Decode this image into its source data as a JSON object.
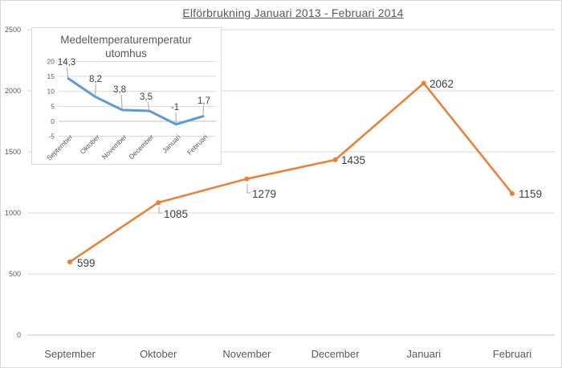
{
  "window": {
    "title": "Elförbrukning Januari 2013 - Februari 2014"
  },
  "colors": {
    "consumption_line": "#ED7D31",
    "temperature_line": "#5B9BD5",
    "gridline": "#D9D9D9",
    "axis_line": "#BFBFBF",
    "axis_text": "#595959",
    "data_label_text": "#404040",
    "leader_line": "#A6A6A6",
    "title_text": "#595959"
  },
  "chart_data": [
    {
      "id": "consumption",
      "type": "line",
      "title": "Elförbrukning Januari 2013 - Februari 2014",
      "categories": [
        "September",
        "Oktober",
        "November",
        "December",
        "Januari",
        "Februari"
      ],
      "values": [
        599,
        1085,
        1279,
        1435,
        2062,
        1159
      ],
      "data_labels": [
        "599",
        "1085",
        "1279",
        "1435",
        "2062",
        "1159"
      ],
      "yticks": [
        0,
        500,
        1000,
        1500,
        2000,
        2500
      ],
      "ytick_labels": [
        "0",
        "500",
        "1000",
        "1500",
        "2000",
        "2500"
      ],
      "ylim": [
        0,
        2500
      ],
      "xlabel": "",
      "ylabel": "",
      "grid": true,
      "legend": "none",
      "line_color": "#ED7D31",
      "markers": true
    },
    {
      "id": "temperature-inset",
      "type": "line",
      "title": "Medeltemperaturemperatur utomhus",
      "title_lines": [
        "Medeltemperaturemperatur",
        "utomhus"
      ],
      "categories": [
        "September",
        "Oktober",
        "November",
        "December",
        "Januari",
        "Februari"
      ],
      "values": [
        14.3,
        8.2,
        3.8,
        3.5,
        -1,
        1.7
      ],
      "data_labels": [
        "14,3",
        "8,2",
        "3,8",
        "3,5",
        "-1",
        "1,7"
      ],
      "yticks": [
        -5,
        0,
        5,
        10,
        15,
        20
      ],
      "ytick_labels": [
        "-5",
        "0",
        "5",
        "10",
        "15",
        "20"
      ],
      "ylim": [
        -5,
        20
      ],
      "xlabel": "",
      "ylabel": "",
      "grid": true,
      "legend": "none",
      "line_color": "#5B9BD5",
      "markers": false
    }
  ]
}
